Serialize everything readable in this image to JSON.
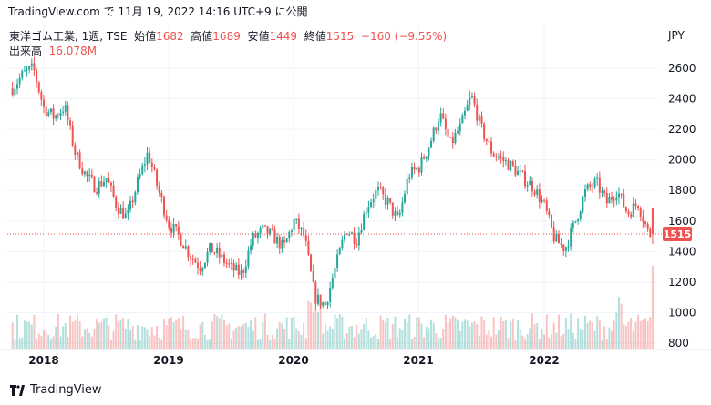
{
  "header": {
    "text": "TradingView.com で 11月 19, 2022 14:16 UTC+9 に公開"
  },
  "legend": {
    "symbol": "東洋ゴム工業, 1週, TSE",
    "open_label": "始値",
    "open_value": "1682",
    "high_label": "高値",
    "high_value": "1689",
    "low_label": "安値",
    "low_value": "1449",
    "close_label": "終値",
    "close_value": "1515",
    "change": "−160 (−9.55%)",
    "volume_label": "出来高",
    "volume_value": "16.078M"
  },
  "currency": "JPY",
  "footer": {
    "brand": "TradingView"
  },
  "colors": {
    "up": "#26a69a",
    "down": "#ef5350",
    "grid": "#f0f3fa",
    "price_line": "#ef5350"
  },
  "chart_data": {
    "type": "candlestick",
    "y_ticks": [
      "2600",
      "2400",
      "2200",
      "2000",
      "1800",
      "1600",
      "1400",
      "1200",
      "1000",
      "800"
    ],
    "x_ticks": [
      "2018",
      "2019",
      "2020",
      "2021",
      "2022"
    ],
    "ylim": [
      750,
      2700
    ],
    "last_price": "1515",
    "trend": [
      [
        "2017-10",
        2470
      ],
      [
        "2017-11",
        2560
      ],
      [
        "2017-12",
        2600
      ],
      [
        "2018-01",
        2340
      ],
      [
        "2018-02",
        2280
      ],
      [
        "2018-03",
        2350
      ],
      [
        "2018-04",
        2050
      ],
      [
        "2018-05",
        1900
      ],
      [
        "2018-06",
        1820
      ],
      [
        "2018-07",
        1880
      ],
      [
        "2018-08",
        1700
      ],
      [
        "2018-09",
        1620
      ],
      [
        "2018-10",
        1850
      ],
      [
        "2018-11",
        2050
      ],
      [
        "2018-12",
        1800
      ],
      [
        "2019-01",
        1580
      ],
      [
        "2019-02",
        1500
      ],
      [
        "2019-03",
        1380
      ],
      [
        "2019-04",
        1300
      ],
      [
        "2019-05",
        1420
      ],
      [
        "2019-06",
        1360
      ],
      [
        "2019-07",
        1290
      ],
      [
        "2019-08",
        1250
      ],
      [
        "2019-09",
        1480
      ],
      [
        "2019-10",
        1540
      ],
      [
        "2019-11",
        1500
      ],
      [
        "2019-12",
        1420
      ],
      [
        "2020-01",
        1600
      ],
      [
        "2020-02",
        1500
      ],
      [
        "2020-03",
        1100
      ],
      [
        "2020-04",
        1050
      ],
      [
        "2020-05",
        1300
      ],
      [
        "2020-06",
        1550
      ],
      [
        "2020-07",
        1480
      ],
      [
        "2020-08",
        1700
      ],
      [
        "2020-09",
        1800
      ],
      [
        "2020-10",
        1720
      ],
      [
        "2020-11",
        1600
      ],
      [
        "2020-12",
        1900
      ],
      [
        "2021-01",
        1950
      ],
      [
        "2021-02",
        2100
      ],
      [
        "2021-03",
        2300
      ],
      [
        "2021-04",
        2100
      ],
      [
        "2021-05",
        2220
      ],
      [
        "2021-06",
        2420
      ],
      [
        "2021-07",
        2200
      ],
      [
        "2021-08",
        2050
      ],
      [
        "2021-09",
        2000
      ],
      [
        "2021-10",
        1950
      ],
      [
        "2021-11",
        1880
      ],
      [
        "2021-12",
        1820
      ],
      [
        "2022-01",
        1700
      ],
      [
        "2022-02",
        1480
      ],
      [
        "2022-03",
        1420
      ],
      [
        "2022-04",
        1600
      ],
      [
        "2022-05",
        1800
      ],
      [
        "2022-06",
        1850
      ],
      [
        "2022-07",
        1720
      ],
      [
        "2022-08",
        1800
      ],
      [
        "2022-09",
        1650
      ],
      [
        "2022-10",
        1720
      ],
      [
        "2022-11",
        1515
      ]
    ],
    "volume_range_millions": [
      1,
      16.078
    ]
  }
}
